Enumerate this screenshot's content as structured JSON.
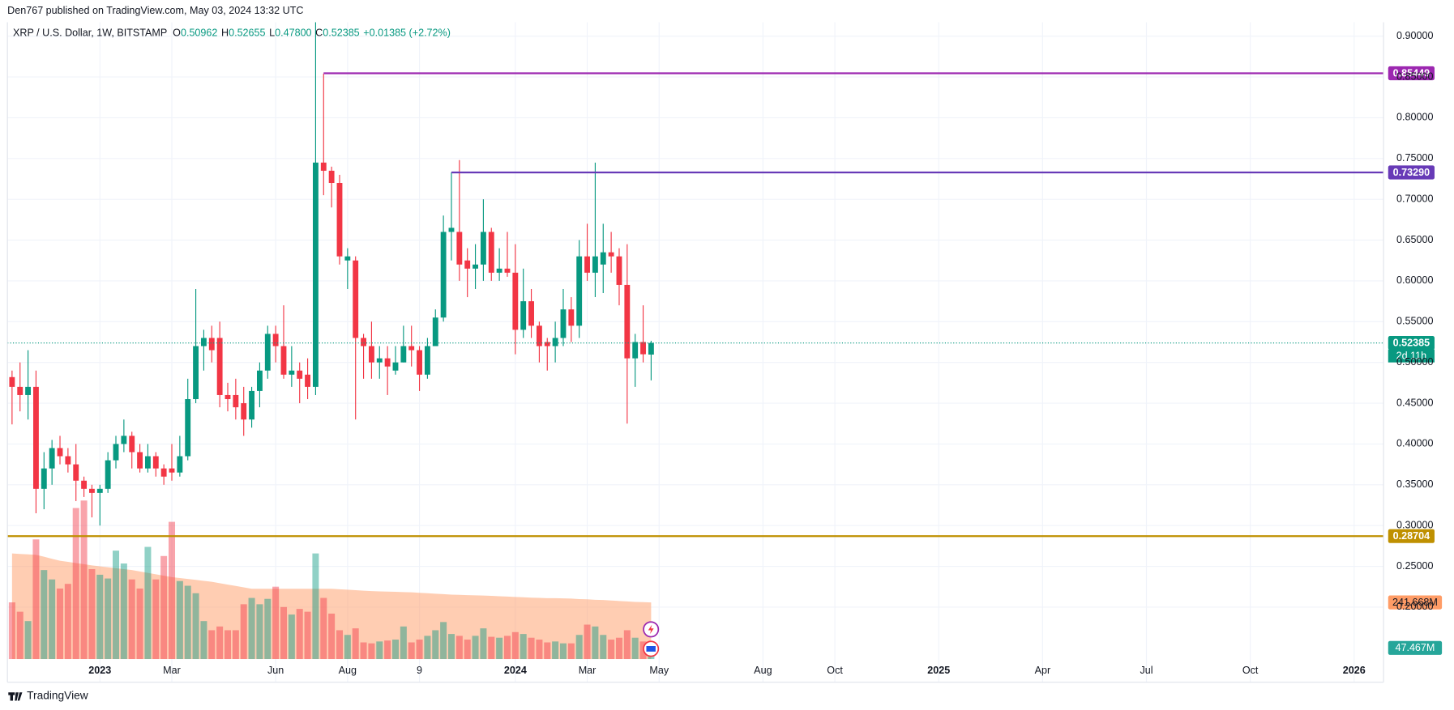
{
  "chart_data": {
    "type": "candlestick",
    "header": "Den767 published on TradingView.com, May 03, 2024 13:32 UTC",
    "legend": {
      "symbol": "XRP / U.S. Dollar, 1W, BITSTAMP",
      "fields": [
        {
          "key": "O",
          "value": "0.50962"
        },
        {
          "key": "H",
          "value": "0.52655"
        },
        {
          "key": "L",
          "value": "0.47800"
        },
        {
          "key": "C",
          "value": "0.52385"
        }
      ],
      "change": "+0.01385 (+2.72%)"
    },
    "open": [
      0.482,
      0.47,
      0.46,
      0.47,
      0.345,
      0.37,
      0.395,
      0.385,
      0.375,
      0.355,
      0.345,
      0.34,
      0.345,
      0.38,
      0.4,
      0.41,
      0.39,
      0.37,
      0.385,
      0.37,
      0.37,
      0.365,
      0.385,
      0.455,
      0.52,
      0.53,
      0.53,
      0.46,
      0.46,
      0.45,
      0.43,
      0.465,
      0.49,
      0.535,
      0.52,
      0.485,
      0.49,
      0.485,
      0.47,
      0.745,
      0.735,
      0.72,
      0.625,
      0.625,
      0.53,
      0.52,
      0.5,
      0.505,
      0.49,
      0.5,
      0.52,
      0.515,
      0.485,
      0.52,
      0.555,
      0.66,
      0.66,
      0.625,
      0.615,
      0.62,
      0.66,
      0.61,
      0.615,
      0.61,
      0.54,
      0.575,
      0.545,
      0.525,
      0.52,
      0.53,
      0.565,
      0.545,
      0.63,
      0.61,
      0.62,
      0.635,
      0.63,
      0.595,
      0.505,
      0.525,
      0.50962
    ],
    "high": [
      0.49,
      0.5,
      0.515,
      0.49,
      0.39,
      0.405,
      0.41,
      0.395,
      0.4,
      0.36,
      0.35,
      0.35,
      0.39,
      0.41,
      0.43,
      0.415,
      0.4,
      0.4,
      0.39,
      0.375,
      0.4,
      0.41,
      0.48,
      0.59,
      0.54,
      0.545,
      0.55,
      0.475,
      0.48,
      0.47,
      0.47,
      0.5,
      0.545,
      0.545,
      0.57,
      0.52,
      0.5,
      0.505,
      0.917,
      0.854,
      0.74,
      0.73,
      0.64,
      0.63,
      0.535,
      0.55,
      0.52,
      0.52,
      0.52,
      0.545,
      0.545,
      0.52,
      0.53,
      0.565,
      0.68,
      0.733,
      0.748,
      0.64,
      0.645,
      0.7,
      0.665,
      0.64,
      0.66,
      0.645,
      0.615,
      0.59,
      0.55,
      0.53,
      0.55,
      0.59,
      0.58,
      0.65,
      0.67,
      0.745,
      0.67,
      0.66,
      0.64,
      0.645,
      0.535,
      0.57,
      0.52655
    ],
    "low": [
      0.424,
      0.44,
      0.43,
      0.315,
      0.32,
      0.35,
      0.375,
      0.365,
      0.33,
      0.335,
      0.31,
      0.3,
      0.34,
      0.37,
      0.39,
      0.37,
      0.365,
      0.365,
      0.36,
      0.35,
      0.355,
      0.36,
      0.38,
      0.45,
      0.49,
      0.5,
      0.445,
      0.44,
      0.43,
      0.41,
      0.42,
      0.445,
      0.48,
      0.5,
      0.48,
      0.47,
      0.45,
      0.455,
      0.46,
      0.705,
      0.69,
      0.62,
      0.59,
      0.43,
      0.48,
      0.48,
      0.48,
      0.46,
      0.485,
      0.5,
      0.495,
      0.465,
      0.48,
      0.52,
      0.55,
      0.625,
      0.6,
      0.58,
      0.59,
      0.6,
      0.6,
      0.6,
      0.605,
      0.51,
      0.53,
      0.53,
      0.5,
      0.49,
      0.5,
      0.52,
      0.525,
      0.53,
      0.6,
      0.58,
      0.585,
      0.61,
      0.57,
      0.425,
      0.47,
      0.5,
      0.478
    ],
    "close": [
      0.47,
      0.46,
      0.47,
      0.345,
      0.37,
      0.395,
      0.385,
      0.375,
      0.355,
      0.345,
      0.34,
      0.345,
      0.38,
      0.4,
      0.41,
      0.39,
      0.37,
      0.385,
      0.37,
      0.36,
      0.365,
      0.385,
      0.455,
      0.52,
      0.53,
      0.515,
      0.46,
      0.455,
      0.445,
      0.43,
      0.465,
      0.49,
      0.535,
      0.52,
      0.485,
      0.49,
      0.48,
      0.47,
      0.745,
      0.735,
      0.72,
      0.63,
      0.63,
      0.53,
      0.52,
      0.5,
      0.505,
      0.495,
      0.5,
      0.52,
      0.515,
      0.485,
      0.52,
      0.555,
      0.66,
      0.665,
      0.62,
      0.615,
      0.62,
      0.66,
      0.61,
      0.615,
      0.61,
      0.54,
      0.575,
      0.545,
      0.52,
      0.52,
      0.53,
      0.565,
      0.545,
      0.63,
      0.61,
      0.63,
      0.635,
      0.63,
      0.595,
      0.505,
      0.525,
      0.51,
      0.52385
    ],
    "volume": [
      242,
      202,
      162,
      511,
      380,
      340,
      301,
      321,
      645,
      677,
      384,
      360,
      344,
      463,
      408,
      340,
      301,
      479,
      340,
      440,
      586,
      333,
      313,
      281,
      162,
      123,
      139,
      123,
      123,
      234,
      261,
      234,
      257,
      309,
      222,
      190,
      214,
      202,
      451,
      261,
      194,
      123,
      103,
      131,
      71,
      67,
      75,
      79,
      83,
      139,
      71,
      83,
      99,
      123,
      158,
      107,
      99,
      83,
      99,
      131,
      95,
      91,
      99,
      115,
      107,
      91,
      83,
      71,
      75,
      67,
      67,
      103,
      147,
      139,
      103,
      83,
      91,
      123,
      91,
      75,
      47.467
    ],
    "volume_ma": [
      451,
      449,
      447,
      445,
      437,
      428,
      420,
      415,
      410,
      405,
      400,
      396,
      392,
      388,
      384,
      380,
      374,
      368,
      362,
      356,
      350,
      346,
      342,
      338,
      334,
      330,
      324,
      318,
      312,
      306,
      300,
      300,
      300,
      300,
      300,
      300,
      300,
      300,
      300,
      300,
      300,
      298,
      296,
      294,
      292,
      290,
      289,
      288,
      287,
      286,
      285,
      283,
      281,
      279,
      277,
      275,
      274,
      273,
      272,
      271,
      270,
      268,
      267,
      265,
      264,
      262,
      261,
      260,
      260,
      259,
      258,
      256,
      255,
      253,
      252,
      250,
      248,
      246,
      244,
      243,
      241.668
    ],
    "colors": {
      "up": "#089981",
      "down": "#f23645",
      "volume_ma": "#ff9c66"
    },
    "xlim": [
      -0.58,
      171.68
    ],
    "xticks": [
      {
        "value": 11,
        "label": "2023"
      },
      {
        "value": 20,
        "label": "Mar"
      },
      {
        "value": 33,
        "label": "Jun"
      },
      {
        "value": 42,
        "label": "Aug"
      },
      {
        "value": 51,
        "label": "9"
      },
      {
        "value": 63,
        "label": "2024"
      },
      {
        "value": 72,
        "label": "Mar"
      },
      {
        "value": 81,
        "label": "May"
      },
      {
        "value": 94,
        "label": "Aug"
      },
      {
        "value": 103,
        "label": "Oct"
      },
      {
        "value": 116,
        "label": "2025"
      },
      {
        "value": 129,
        "label": "Apr"
      },
      {
        "value": 142,
        "label": "Jul"
      },
      {
        "value": 155,
        "label": "Oct"
      },
      {
        "value": 168,
        "label": "2026"
      }
    ],
    "ylim": [
      0.13636,
      0.91705
    ],
    "yticks": [
      {
        "value": 0.9,
        "label": "0.90000"
      },
      {
        "value": 0.85,
        "label": "0.85000"
      },
      {
        "value": 0.8,
        "label": "0.80000"
      },
      {
        "value": 0.75,
        "label": "0.75000"
      },
      {
        "value": 0.7,
        "label": "0.70000"
      },
      {
        "value": 0.65,
        "label": "0.65000"
      },
      {
        "value": 0.6,
        "label": "0.60000"
      },
      {
        "value": 0.55,
        "label": "0.55000"
      },
      {
        "value": 0.5,
        "label": "0.50000"
      },
      {
        "value": 0.45,
        "label": "0.45000"
      },
      {
        "value": 0.4,
        "label": "0.40000"
      },
      {
        "value": 0.35,
        "label": "0.35000"
      },
      {
        "value": 0.3,
        "label": "0.30000"
      },
      {
        "value": 0.25,
        "label": "0.25000"
      },
      {
        "value": 0.2,
        "label": "0.20000"
      }
    ],
    "vlim": [
      0,
      2720
    ],
    "grid": true,
    "levels": [
      {
        "value": 0.85449,
        "label": "0.85449",
        "color": "#9c27b0",
        "start": 39
      },
      {
        "value": 0.7329,
        "label": "0.73290",
        "color": "#673ab7",
        "start": 55
      },
      {
        "value": 0.28704,
        "label": "0.28704",
        "color": "#bf9000",
        "start": -0.58
      }
    ],
    "last_price": {
      "value": 0.52385,
      "label": "0.52385",
      "countdown": "2d 11h",
      "color": "#089981"
    },
    "volume_labels": [
      {
        "value": 241.668,
        "label": "241.668M",
        "color": "#ff9c66",
        "text_color": "#131722"
      },
      {
        "value": 47.467,
        "label": "47.467M",
        "color": "#26a69a",
        "text_color": "#ffffff"
      }
    ],
    "footer": "TradingView"
  }
}
